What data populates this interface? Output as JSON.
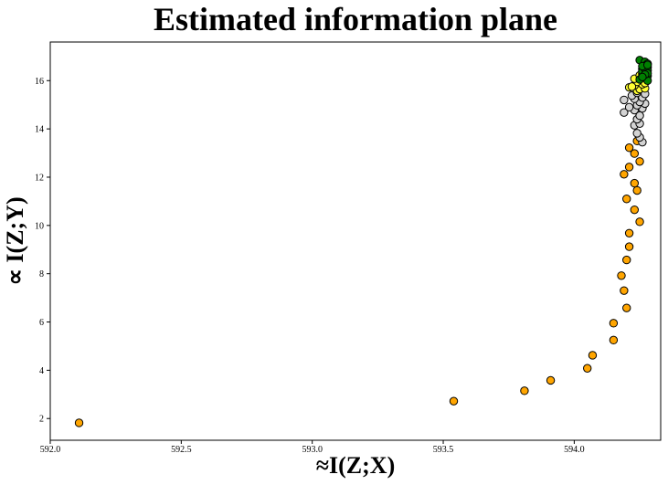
{
  "chart_data": {
    "type": "scatter",
    "title": "Estimated information plane",
    "xlabel": "≈I(Z;X)",
    "ylabel": "∝ I(Z;Y)",
    "xlim": [
      592.0,
      594.33
    ],
    "ylim": [
      1.1,
      17.6
    ],
    "xticks": [
      592.0,
      592.5,
      593.0,
      593.5,
      594.0
    ],
    "xtick_labels": [
      "592.0",
      "592.5",
      "593.0",
      "593.5",
      "594.0"
    ],
    "yticks": [
      2,
      4,
      6,
      8,
      10,
      12,
      14,
      16
    ],
    "ytick_labels": [
      "2",
      "4",
      "6",
      "8",
      "10",
      "12",
      "14",
      "16"
    ],
    "grid": false,
    "marker_edge_color": "#000000",
    "series": [
      {
        "color": "#ffa500",
        "points": [
          [
            592.11,
            1.82
          ],
          [
            593.54,
            2.72
          ],
          [
            593.81,
            3.15
          ],
          [
            593.91,
            3.58
          ],
          [
            594.05,
            4.08
          ],
          [
            594.07,
            4.62
          ],
          [
            594.15,
            5.25
          ],
          [
            594.15,
            5.95
          ],
          [
            594.2,
            6.58
          ],
          [
            594.19,
            7.3
          ],
          [
            594.18,
            7.92
          ],
          [
            594.2,
            8.57
          ],
          [
            594.21,
            9.12
          ],
          [
            594.21,
            9.68
          ],
          [
            594.25,
            10.15
          ],
          [
            594.23,
            10.65
          ],
          [
            594.2,
            11.1
          ],
          [
            594.24,
            11.45
          ],
          [
            594.23,
            11.75
          ],
          [
            594.19,
            12.12
          ],
          [
            594.21,
            12.42
          ],
          [
            594.25,
            12.65
          ],
          [
            594.23,
            12.98
          ],
          [
            594.21,
            13.22
          ],
          [
            594.24,
            13.5
          ]
        ]
      },
      {
        "color": "#d3d3d3",
        "points": [
          [
            594.26,
            13.45
          ],
          [
            594.25,
            13.65
          ],
          [
            594.24,
            13.82
          ],
          [
            594.23,
            14.15
          ],
          [
            594.25,
            14.22
          ],
          [
            594.24,
            14.4
          ],
          [
            594.25,
            14.55
          ],
          [
            594.19,
            14.68
          ],
          [
            594.23,
            14.78
          ],
          [
            594.26,
            14.85
          ],
          [
            594.21,
            14.9
          ],
          [
            594.24,
            14.98
          ],
          [
            594.27,
            15.05
          ],
          [
            594.25,
            15.12
          ],
          [
            594.19,
            15.2
          ],
          [
            594.23,
            15.25
          ],
          [
            594.26,
            15.3
          ],
          [
            594.22,
            15.38
          ],
          [
            594.27,
            15.45
          ],
          [
            594.24,
            15.5
          ]
        ]
      },
      {
        "color": "#ffff33",
        "points": [
          [
            594.21,
            15.72
          ],
          [
            594.24,
            15.58
          ],
          [
            594.25,
            15.65
          ],
          [
            594.27,
            15.68
          ],
          [
            594.23,
            15.8
          ],
          [
            594.26,
            15.85
          ],
          [
            594.24,
            15.95
          ],
          [
            594.27,
            16.02
          ],
          [
            594.23,
            16.08
          ],
          [
            594.26,
            16.15
          ],
          [
            594.25,
            16.22
          ],
          [
            594.22,
            15.75
          ],
          [
            594.27,
            15.9
          ]
        ]
      },
      {
        "color": "#008000",
        "points": [
          [
            594.25,
            16.85
          ],
          [
            594.27,
            16.78
          ],
          [
            594.28,
            16.7
          ],
          [
            594.27,
            16.62
          ],
          [
            594.28,
            16.55
          ],
          [
            594.26,
            16.48
          ],
          [
            594.28,
            16.42
          ],
          [
            594.27,
            16.35
          ],
          [
            594.26,
            16.28
          ],
          [
            594.28,
            16.2
          ],
          [
            594.27,
            16.12
          ],
          [
            594.25,
            16.05
          ],
          [
            594.28,
            16.0
          ],
          [
            594.26,
            16.38
          ],
          [
            594.27,
            16.5
          ],
          [
            594.28,
            16.3
          ],
          [
            594.26,
            16.6
          ],
          [
            594.27,
            16.25
          ],
          [
            594.28,
            16.65
          ],
          [
            594.26,
            16.15
          ]
        ]
      }
    ]
  }
}
